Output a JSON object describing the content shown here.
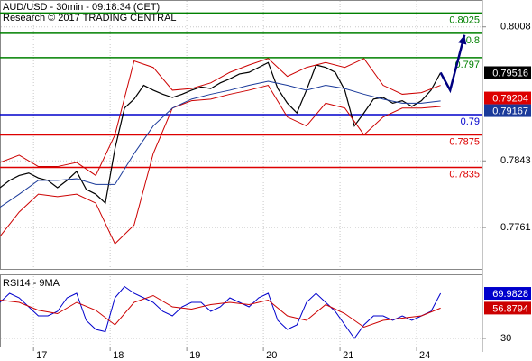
{
  "chart_data": [
    {
      "type": "line",
      "title": "AUD/USD - 30min - 09:18:34 (CET)",
      "subtitle": "Research © 2017 TRADING CENTRAL",
      "xlim": [
        0,
        151.1
      ],
      "xticks": [
        {
          "value": 10.5,
          "label": "17"
        },
        {
          "value": 34.5,
          "label": "18"
        },
        {
          "value": 58.5,
          "label": "19"
        },
        {
          "value": 82.5,
          "label": "20"
        },
        {
          "value": 106.5,
          "label": "21"
        },
        {
          "value": 130.5,
          "label": "24"
        }
      ],
      "ylim": [
        0.771,
        0.8041
      ],
      "yticks": [
        0.8008,
        0.7843,
        0.7761
      ],
      "grid": true,
      "series": [
        {
          "color": "#000000",
          "x": [
            0,
            3,
            6,
            9,
            12,
            15,
            18,
            21,
            24,
            27,
            30,
            33,
            36,
            39,
            42,
            45,
            48,
            51,
            54,
            57,
            60,
            63,
            66,
            69,
            72,
            75,
            78,
            81,
            84,
            87,
            90,
            93,
            96,
            99,
            102,
            105,
            108,
            111,
            114,
            117,
            120,
            123,
            126,
            129,
            132,
            135,
            138
          ],
          "values": [
            0.781,
            0.7819,
            0.7825,
            0.7828,
            0.7822,
            0.7819,
            0.781,
            0.7819,
            0.783,
            0.7808,
            0.7802,
            0.7791,
            0.7858,
            0.7908,
            0.7919,
            0.7936,
            0.793,
            0.7925,
            0.7921,
            0.7925,
            0.793,
            0.7934,
            0.7932,
            0.7939,
            0.7944,
            0.795,
            0.7952,
            0.7958,
            0.7964,
            0.7932,
            0.7914,
            0.7902,
            0.793,
            0.7961,
            0.7958,
            0.7952,
            0.793,
            0.7886,
            0.7902,
            0.7919,
            0.7921,
            0.7914,
            0.7917,
            0.791,
            0.7917,
            0.793,
            0.79516
          ]
        },
        {
          "color": "#cc0000",
          "x": [
            0,
            6,
            12,
            18,
            24,
            30,
            36,
            42,
            48,
            54,
            60,
            66,
            72,
            78,
            84,
            90,
            96,
            102,
            108,
            114,
            120,
            126,
            132,
            138
          ],
          "values": [
            0.7841,
            0.785,
            0.7836,
            0.7836,
            0.7841,
            0.7825,
            0.7875,
            0.7966,
            0.7958,
            0.793,
            0.7932,
            0.7939,
            0.7952,
            0.7961,
            0.7969,
            0.7947,
            0.7958,
            0.7964,
            0.7958,
            0.7969,
            0.7936,
            0.7925,
            0.7927,
            0.7936
          ]
        },
        {
          "color": "#cc0000",
          "x": [
            0,
            6,
            12,
            18,
            24,
            30,
            36,
            42,
            48,
            54,
            60,
            66,
            72,
            78,
            84,
            90,
            96,
            102,
            108,
            114,
            120,
            126,
            132,
            138
          ],
          "values": [
            0.775,
            0.778,
            0.7802,
            0.7799,
            0.7802,
            0.7791,
            0.7741,
            0.7764,
            0.7852,
            0.7908,
            0.7917,
            0.7919,
            0.7925,
            0.793,
            0.7936,
            0.7897,
            0.7886,
            0.7914,
            0.7908,
            0.7875,
            0.7897,
            0.7908,
            0.7908,
            0.791
          ]
        },
        {
          "color": "#1a3a9a",
          "x": [
            0,
            6,
            12,
            18,
            24,
            30,
            36,
            42,
            48,
            54,
            60,
            66,
            72,
            78,
            84,
            90,
            96,
            102,
            108,
            114,
            120,
            126,
            132,
            138
          ],
          "values": [
            0.7786,
            0.7802,
            0.7819,
            0.7819,
            0.7821,
            0.7814,
            0.7814,
            0.7852,
            0.7886,
            0.7908,
            0.7919,
            0.7925,
            0.793,
            0.7936,
            0.7941,
            0.7936,
            0.793,
            0.7936,
            0.7932,
            0.7925,
            0.7919,
            0.7914,
            0.7914,
            0.79167
          ]
        }
      ],
      "levels": [
        {
          "value": 0.8025,
          "color": "#008000"
        },
        {
          "value": 0.8,
          "color": "#008000"
        },
        {
          "value": 0.797,
          "color": "#008000"
        },
        {
          "value": 0.79,
          "color": "#0000cc"
        },
        {
          "value": 0.7875,
          "color": "#dd0000"
        },
        {
          "value": 0.7835,
          "color": "#dd0000"
        }
      ],
      "markers": [
        {
          "value": 0.79204,
          "color": "#dd0000"
        }
      ],
      "forecast": {
        "color": "#000080",
        "x": [
          138,
          141,
          145.5
        ],
        "values": [
          0.79516,
          0.793,
          0.7998
        ]
      }
    },
    {
      "type": "line",
      "title": "RSI14 - 9MA",
      "xlim": [
        0,
        151.1
      ],
      "ylim": [
        22,
        86
      ],
      "yticks": [
        30
      ],
      "series": [
        {
          "color": "#0000cc",
          "x": [
            0,
            3,
            6,
            9,
            12,
            15,
            18,
            21,
            24,
            27,
            30,
            33,
            36,
            39,
            42,
            45,
            48,
            51,
            54,
            57,
            60,
            63,
            66,
            69,
            72,
            75,
            78,
            81,
            84,
            87,
            90,
            93,
            96,
            99,
            102,
            105,
            108,
            111,
            114,
            117,
            120,
            123,
            126,
            129,
            132,
            135,
            138
          ],
          "values": [
            62,
            70,
            66,
            58,
            50,
            50,
            54,
            66,
            70,
            46,
            38,
            36,
            66,
            76,
            70,
            66,
            62,
            54,
            50,
            58,
            62,
            62,
            54,
            58,
            66,
            62,
            58,
            66,
            70,
            46,
            38,
            42,
            62,
            70,
            62,
            54,
            42,
            30,
            42,
            50,
            50,
            46,
            50,
            46,
            50,
            54,
            69.9828
          ]
        },
        {
          "color": "#cc0000",
          "x": [
            0,
            6,
            12,
            18,
            24,
            30,
            36,
            42,
            48,
            54,
            60,
            66,
            72,
            78,
            84,
            90,
            96,
            102,
            108,
            114,
            120,
            126,
            132,
            138
          ],
          "values": [
            64,
            62,
            55,
            52,
            62,
            55,
            42,
            62,
            68,
            58,
            56,
            60,
            62,
            60,
            64,
            50,
            46,
            60,
            52,
            40,
            46,
            48,
            50,
            56.8794
          ]
        }
      ]
    }
  ]
}
